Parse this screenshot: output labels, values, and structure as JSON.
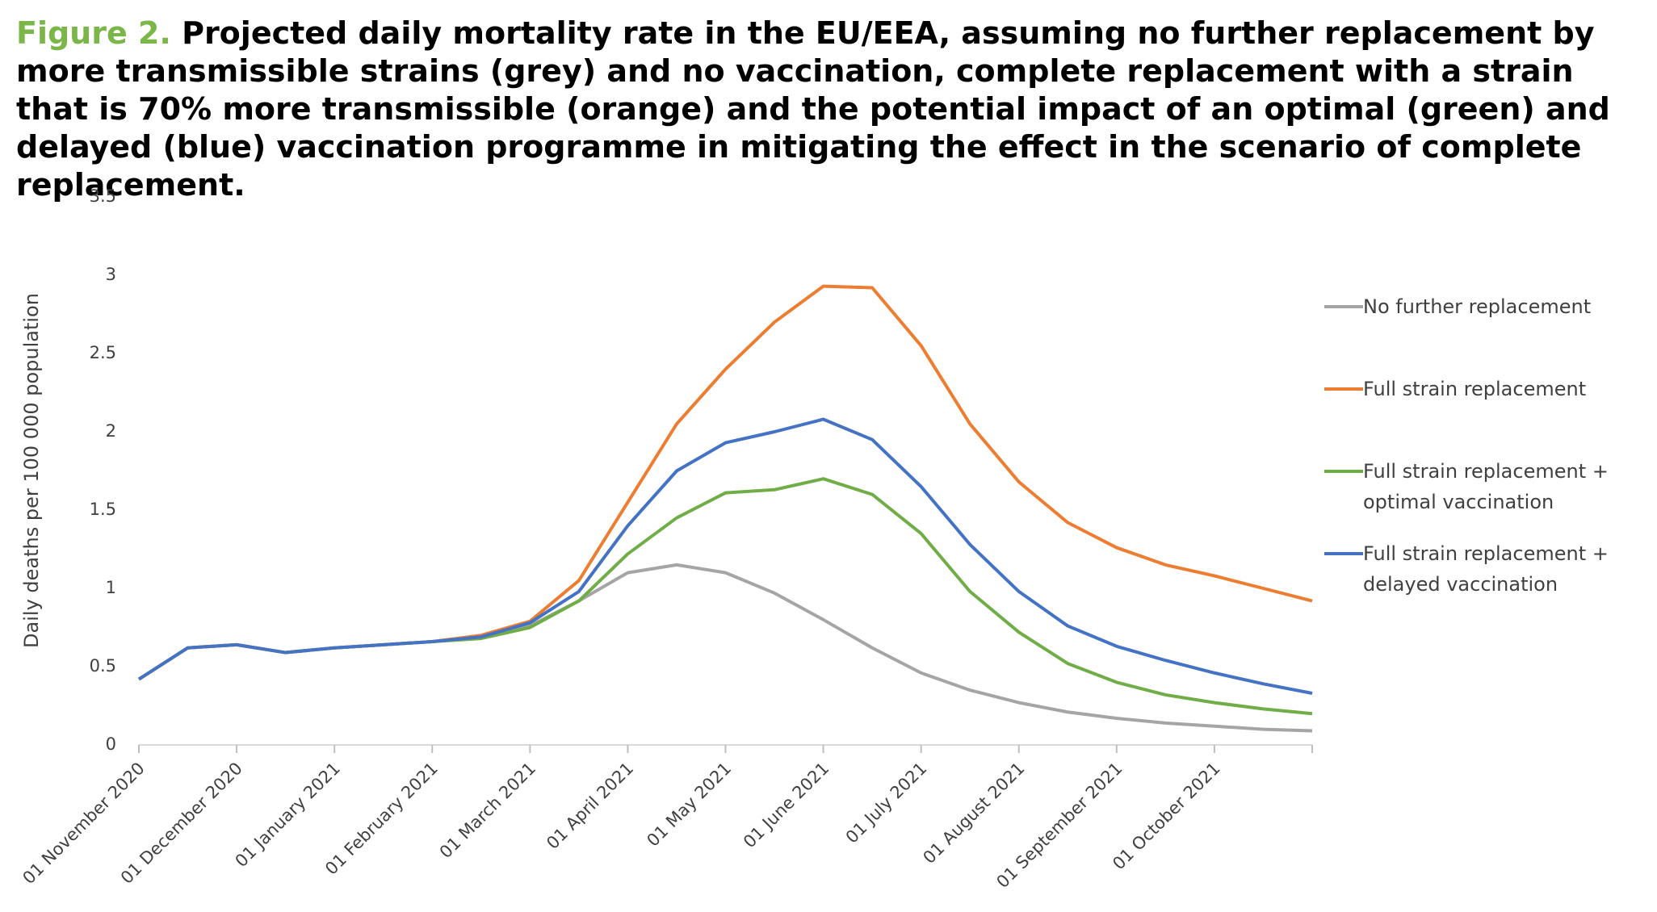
{
  "chart_data": {
    "type": "line",
    "title_label": "Figure 2.",
    "title": "Projected daily mortality rate in the EU/EEA, assuming no further replacement by more transmissible strains (grey) and no vaccination, complete replacement with a strain that is 70% more transmissible (orange) and the potential impact of an optimal (green) and delayed (blue) vaccination programme in mitigating the effect in the scenario of complete replacement.",
    "y_label": "Daily deaths per 100 000 population",
    "categories": [
      "01 November 2020",
      null,
      "01 December 2020",
      null,
      "01 January 2021",
      null,
      "01 February 2021",
      null,
      "01 March 2021",
      null,
      "01 April 2021",
      null,
      "01 May 2021",
      null,
      "01 June 2021",
      null,
      "01 July 2021",
      null,
      "01 August 2021",
      null,
      "01 September 2021",
      null,
      "01 October 2021",
      null,
      null
    ],
    "series": [
      {
        "name": "No further replacement",
        "color": "#a5a5a5",
        "values": [
          0.42,
          0.62,
          0.64,
          0.59,
          0.62,
          0.64,
          0.66,
          0.69,
          0.76,
          0.92,
          1.1,
          1.15,
          1.1,
          0.97,
          0.8,
          0.62,
          0.46,
          0.35,
          0.27,
          0.21,
          0.17,
          0.14,
          0.12,
          0.1,
          0.09
        ]
      },
      {
        "name": "Full strain replacement",
        "color": "#ed7d31",
        "values": [
          0.42,
          0.62,
          0.64,
          0.59,
          0.62,
          0.64,
          0.66,
          0.7,
          0.79,
          1.05,
          1.55,
          2.05,
          2.4,
          2.7,
          2.93,
          2.92,
          2.55,
          2.05,
          1.68,
          1.42,
          1.26,
          1.15,
          1.08,
          1.0,
          0.92
        ]
      },
      {
        "name": "Full strain replacement + optimal vaccination",
        "color": "#70ad47",
        "values": [
          0.42,
          0.62,
          0.64,
          0.59,
          0.62,
          0.64,
          0.66,
          0.68,
          0.75,
          0.92,
          1.22,
          1.45,
          1.61,
          1.63,
          1.7,
          1.6,
          1.35,
          0.98,
          0.72,
          0.52,
          0.4,
          0.32,
          0.27,
          0.23,
          0.2
        ]
      },
      {
        "name": "Full strain replacement + delayed vaccination",
        "color": "#4472c4",
        "values": [
          0.42,
          0.62,
          0.64,
          0.59,
          0.62,
          0.64,
          0.66,
          0.69,
          0.78,
          0.98,
          1.4,
          1.75,
          1.93,
          2.0,
          2.08,
          1.95,
          1.65,
          1.28,
          0.98,
          0.76,
          0.63,
          0.54,
          0.46,
          0.39,
          0.33
        ]
      }
    ],
    "ylim": [
      0,
      3.5
    ],
    "yticks": [
      0,
      0.5,
      1,
      1.5,
      2,
      2.5,
      3,
      3.5
    ],
    "grid": false,
    "legend": "right"
  }
}
